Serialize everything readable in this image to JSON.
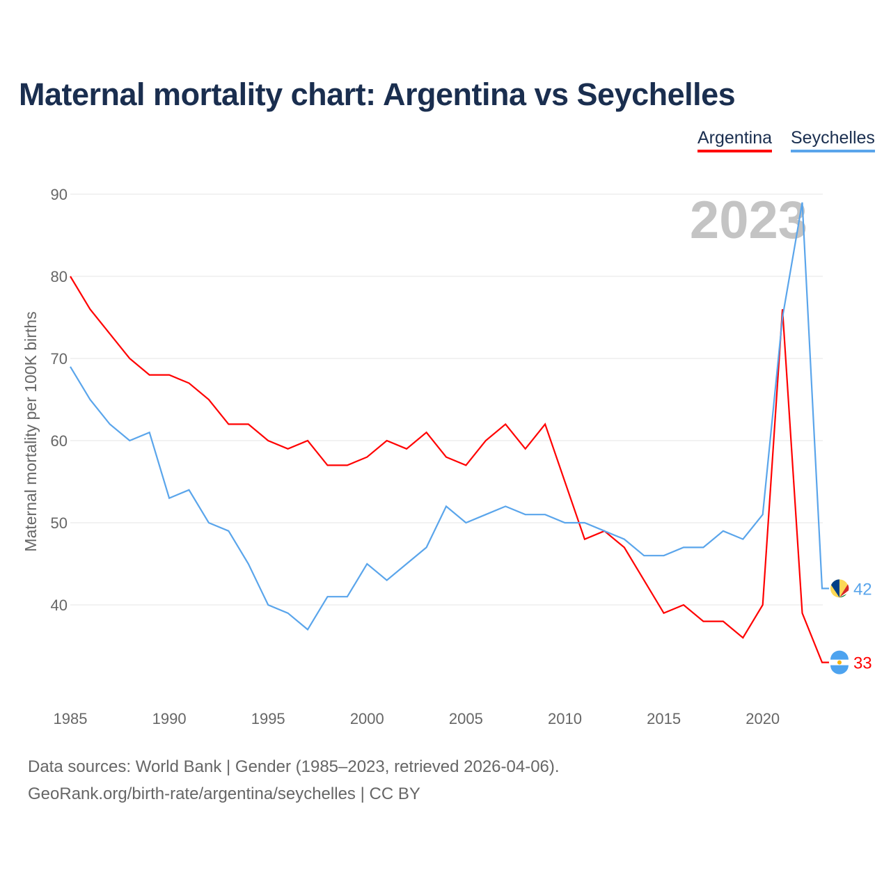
{
  "chart_data": {
    "type": "line",
    "title": "Maternal mortality chart: Argentina vs Seychelles",
    "ylabel": "Maternal mortality per 100K births",
    "xlabel": "",
    "year_watermark": "2023",
    "ylim": [
      30,
      92
    ],
    "xlim": [
      1985,
      2023
    ],
    "yticks": [
      40,
      50,
      60,
      70,
      80,
      90
    ],
    "xticks": [
      1985,
      1990,
      1995,
      2000,
      2005,
      2010,
      2015,
      2020
    ],
    "grid": true,
    "legend_position": "top-right",
    "x": [
      1985,
      1986,
      1987,
      1988,
      1989,
      1990,
      1991,
      1992,
      1993,
      1994,
      1995,
      1996,
      1997,
      1998,
      1999,
      2000,
      2001,
      2002,
      2003,
      2004,
      2005,
      2006,
      2007,
      2008,
      2009,
      2010,
      2011,
      2012,
      2013,
      2014,
      2015,
      2016,
      2017,
      2018,
      2019,
      2020,
      2021,
      2022,
      2023
    ],
    "series": [
      {
        "name": "Argentina",
        "color": "#ff0000",
        "end_label": "33",
        "values": [
          80,
          76,
          73,
          70,
          68,
          68,
          67,
          65,
          62,
          62,
          60,
          59,
          60,
          57,
          57,
          58,
          60,
          59,
          61,
          58,
          57,
          60,
          62,
          59,
          62,
          55,
          48,
          49,
          47,
          43,
          39,
          40,
          38,
          38,
          36,
          40,
          76,
          39,
          33
        ]
      },
      {
        "name": "Seychelles",
        "color": "#5aa5eb",
        "end_label": "42",
        "values": [
          69,
          65,
          62,
          60,
          61,
          53,
          54,
          50,
          49,
          45,
          40,
          39,
          37,
          41,
          41,
          45,
          43,
          45,
          47,
          52,
          50,
          51,
          52,
          51,
          51,
          50,
          50,
          49,
          48,
          46,
          46,
          47,
          47,
          49,
          48,
          51,
          75,
          89,
          42
        ]
      }
    ]
  },
  "footer": {
    "source": "Data sources: World Bank | Gender (1985–2023, retrieved 2026-04-06).",
    "credit": "GeoRank.org/birth-rate/argentina/seychelles | CC BY"
  }
}
